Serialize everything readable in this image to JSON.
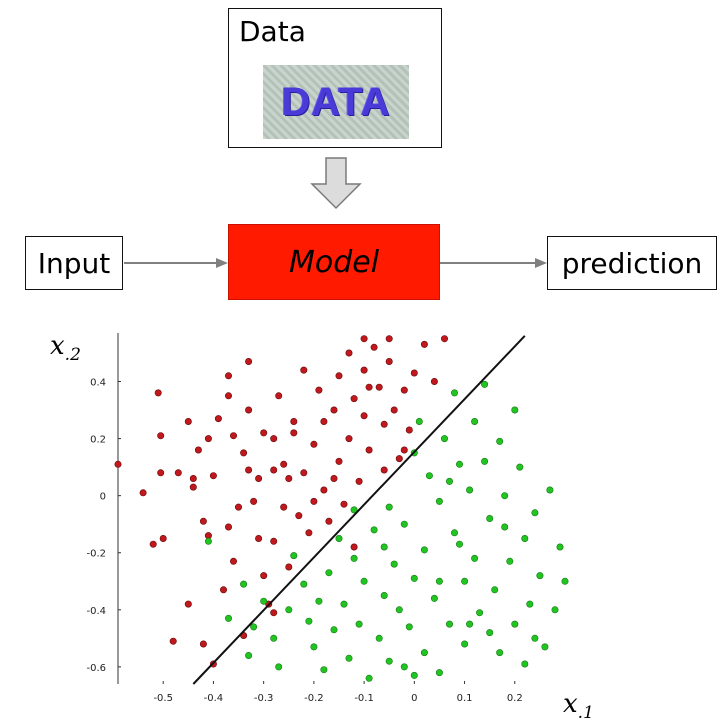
{
  "diagram": {
    "data_box": {
      "title": "Data",
      "image_text": "DATA"
    },
    "input_label": "Input",
    "model_label": "Model",
    "prediction_label": "prediction",
    "colors": {
      "model": "#ff1a00",
      "arrow": "#808080",
      "down_arrow_fill": "#dcdcdc"
    }
  },
  "chart_data": {
    "type": "scatter",
    "xlabel": "x",
    "xlabel_sub": ".1",
    "ylabel": "x",
    "ylabel_sub": ".2",
    "xlim": [
      -0.59,
      0.3
    ],
    "ylim": [
      -0.66,
      0.57
    ],
    "x_ticks": [
      -0.5,
      -0.4,
      -0.3,
      -0.2,
      -0.1,
      0,
      0.1,
      0.2
    ],
    "x_tick_labels": [
      "-0.5",
      "-0.4",
      "-0.3",
      "-0.2",
      "-0.1",
      "0",
      "0.1",
      "0.2"
    ],
    "y_ticks": [
      0.4,
      0.2,
      0,
      -0.2,
      -0.4,
      -0.6
    ],
    "y_tick_labels": [
      "0.4",
      "0.2",
      "0",
      "-0.2",
      "-0.4",
      "-0.6"
    ],
    "boundary": {
      "from": [
        -0.44,
        -0.66
      ],
      "to": [
        0.22,
        0.56
      ]
    },
    "series": [
      {
        "color": "#c0181c",
        "points": [
          [
            -0.59,
            0.11
          ],
          [
            -0.54,
            0.01
          ],
          [
            -0.52,
            -0.17
          ],
          [
            -0.51,
            0.36
          ],
          [
            -0.505,
            0.21
          ],
          [
            -0.505,
            0.08
          ],
          [
            -0.5,
            -0.15
          ],
          [
            -0.48,
            -0.51
          ],
          [
            -0.47,
            0.08
          ],
          [
            -0.45,
            0.26
          ],
          [
            -0.44,
            0.03
          ],
          [
            -0.43,
            0.16
          ],
          [
            -0.42,
            -0.09
          ],
          [
            -0.41,
            0.2
          ],
          [
            -0.41,
            -0.14
          ],
          [
            -0.4,
            0.07
          ],
          [
            -0.4,
            -0.59
          ],
          [
            -0.39,
            0.27
          ],
          [
            -0.38,
            -0.33
          ],
          [
            -0.37,
            -0.11
          ],
          [
            -0.37,
            0.35
          ],
          [
            -0.36,
            0.21
          ],
          [
            -0.36,
            -0.23
          ],
          [
            -0.35,
            -0.04
          ],
          [
            -0.34,
            0.15
          ],
          [
            -0.33,
            0.3
          ],
          [
            -0.33,
            0.47
          ],
          [
            -0.32,
            -0.02
          ],
          [
            -0.31,
            -0.15
          ],
          [
            -0.31,
            0.06
          ],
          [
            -0.3,
            0.22
          ],
          [
            -0.29,
            -0.38
          ],
          [
            -0.28,
            0.2
          ],
          [
            -0.28,
            -0.16
          ],
          [
            -0.27,
            0.35
          ],
          [
            -0.26,
            0.11
          ],
          [
            -0.26,
            -0.04
          ],
          [
            -0.25,
            -0.25
          ],
          [
            -0.24,
            0.26
          ],
          [
            -0.23,
            -0.07
          ],
          [
            -0.22,
            0.08
          ],
          [
            -0.22,
            0.44
          ],
          [
            -0.21,
            -0.13
          ],
          [
            -0.2,
            0.18
          ],
          [
            -0.19,
            0.37
          ],
          [
            -0.18,
            0.02
          ],
          [
            -0.17,
            -0.09
          ],
          [
            -0.16,
            0.3
          ],
          [
            -0.15,
            0.42
          ],
          [
            -0.15,
            0.12
          ],
          [
            -0.14,
            -0.03
          ],
          [
            -0.13,
            0.2
          ],
          [
            -0.12,
            0.34
          ],
          [
            -0.12,
            -0.18
          ],
          [
            -0.11,
            0.05
          ],
          [
            -0.1,
            0.28
          ],
          [
            -0.1,
            0.44
          ],
          [
            -0.09,
            0.16
          ],
          [
            -0.08,
            0.52
          ],
          [
            -0.07,
            0.38
          ],
          [
            -0.06,
            0.25
          ],
          [
            -0.05,
            0.47
          ],
          [
            -0.04,
            0.3
          ],
          [
            -0.03,
            0.13
          ],
          [
            -0.02,
            0.37
          ],
          [
            -0.01,
            0.23
          ],
          [
            0.0,
            0.43
          ],
          [
            0.02,
            0.53
          ],
          [
            -0.05,
            0.55
          ],
          [
            -0.1,
            0.55
          ],
          [
            -0.02,
            0.16
          ],
          [
            -0.34,
            -0.49
          ],
          [
            -0.3,
            -0.28
          ],
          [
            -0.28,
            0.09
          ],
          [
            -0.24,
            0.22
          ],
          [
            -0.16,
            0.06
          ],
          [
            -0.13,
            0.5
          ],
          [
            -0.06,
            0.09
          ],
          [
            0.06,
            0.55
          ],
          [
            -0.37,
            0.42
          ],
          [
            -0.2,
            -0.02
          ],
          [
            -0.45,
            -0.38
          ],
          [
            -0.42,
            -0.52
          ],
          [
            -0.33,
            0.09
          ],
          [
            -0.28,
            -0.41
          ],
          [
            -0.09,
            0.38
          ],
          [
            0.04,
            0.4
          ],
          [
            -0.18,
            0.26
          ],
          [
            -0.25,
            0.06
          ],
          [
            -0.44,
            0.06
          ]
        ]
      },
      {
        "color": "#22c422",
        "points": [
          [
            -0.41,
            -0.16
          ],
          [
            -0.37,
            -0.43
          ],
          [
            -0.34,
            -0.31
          ],
          [
            -0.33,
            -0.56
          ],
          [
            -0.32,
            -0.46
          ],
          [
            -0.3,
            -0.37
          ],
          [
            -0.28,
            -0.5
          ],
          [
            -0.27,
            -0.6
          ],
          [
            -0.25,
            -0.4
          ],
          [
            -0.24,
            -0.21
          ],
          [
            -0.22,
            -0.31
          ],
          [
            -0.21,
            -0.44
          ],
          [
            -0.2,
            -0.53
          ],
          [
            -0.19,
            -0.37
          ],
          [
            -0.18,
            -0.61
          ],
          [
            -0.17,
            -0.27
          ],
          [
            -0.16,
            -0.47
          ],
          [
            -0.15,
            -0.15
          ],
          [
            -0.14,
            -0.38
          ],
          [
            -0.13,
            -0.57
          ],
          [
            -0.12,
            -0.22
          ],
          [
            -0.11,
            -0.45
          ],
          [
            -0.1,
            -0.3
          ],
          [
            -0.09,
            -0.64
          ],
          [
            -0.08,
            -0.12
          ],
          [
            -0.07,
            -0.5
          ],
          [
            -0.06,
            -0.35
          ],
          [
            -0.05,
            -0.04
          ],
          [
            -0.05,
            -0.58
          ],
          [
            -0.04,
            -0.24
          ],
          [
            -0.03,
            -0.4
          ],
          [
            -0.02,
            -0.1
          ],
          [
            -0.01,
            -0.46
          ],
          [
            0.0,
            -0.29
          ],
          [
            0.0,
            0.15
          ],
          [
            0.01,
            0.26
          ],
          [
            0.02,
            -0.19
          ],
          [
            0.02,
            -0.55
          ],
          [
            0.03,
            0.07
          ],
          [
            0.04,
            -0.36
          ],
          [
            0.05,
            -0.02
          ],
          [
            0.05,
            -0.62
          ],
          [
            0.06,
            0.2
          ],
          [
            0.07,
            -0.45
          ],
          [
            0.08,
            -0.13
          ],
          [
            0.08,
            0.36
          ],
          [
            0.09,
            0.11
          ],
          [
            0.1,
            -0.3
          ],
          [
            0.1,
            -0.52
          ],
          [
            0.11,
            0.02
          ],
          [
            0.12,
            0.26
          ],
          [
            0.12,
            -0.22
          ],
          [
            0.13,
            -0.41
          ],
          [
            0.14,
            0.12
          ],
          [
            0.14,
            0.39
          ],
          [
            0.15,
            -0.08
          ],
          [
            0.16,
            -0.33
          ],
          [
            0.17,
            0.19
          ],
          [
            0.17,
            -0.55
          ],
          [
            0.18,
            0.0
          ],
          [
            0.19,
            -0.23
          ],
          [
            0.2,
            -0.45
          ],
          [
            0.21,
            0.1
          ],
          [
            0.22,
            -0.15
          ],
          [
            0.23,
            -0.38
          ],
          [
            0.24,
            -0.06
          ],
          [
            0.25,
            -0.28
          ],
          [
            0.26,
            -0.53
          ],
          [
            0.27,
            0.02
          ],
          [
            0.28,
            -0.4
          ],
          [
            0.29,
            -0.18
          ],
          [
            0.3,
            -0.3
          ],
          [
            0.15,
            -0.48
          ],
          [
            0.0,
            -0.63
          ],
          [
            -0.02,
            -0.6
          ],
          [
            0.05,
            -0.3
          ],
          [
            -0.12,
            -0.05
          ],
          [
            0.11,
            -0.45
          ],
          [
            0.18,
            -0.11
          ],
          [
            0.22,
            -0.59
          ],
          [
            0.07,
            0.05
          ],
          [
            -0.06,
            -0.18
          ],
          [
            0.2,
            0.3
          ],
          [
            0.09,
            -0.17
          ],
          [
            0.24,
            -0.5
          ]
        ]
      }
    ]
  }
}
